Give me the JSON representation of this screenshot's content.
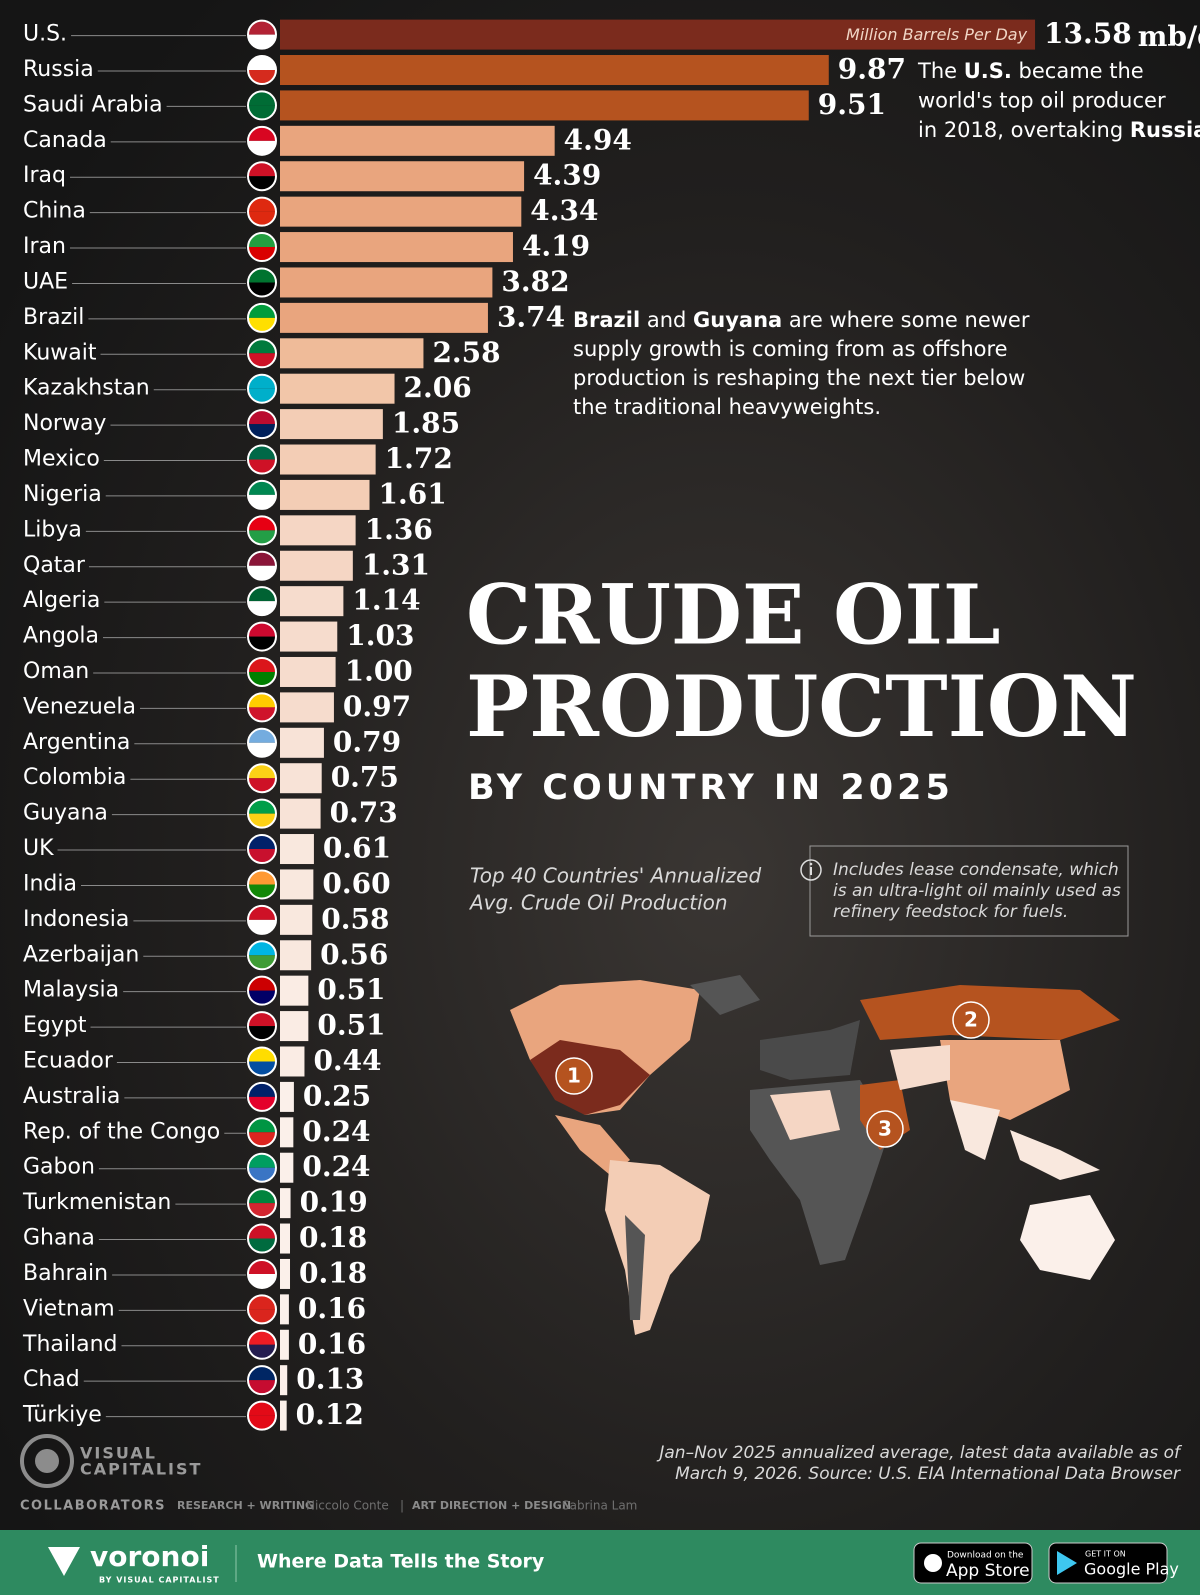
{
  "chart_data": {
    "type": "bar",
    "title": [
      "CRUDE OIL",
      "PRODUCTION"
    ],
    "subtitle": "BY COUNTRY IN 2025",
    "description": [
      "Top 40 Countries' Annualized",
      "Avg. Crude Oil Production"
    ],
    "note": [
      "Includes lease condensate, which",
      "is an ultra-light oil mainly used as",
      "refinery feedstock for fuels."
    ],
    "unit_label": "Million Barrels Per Day",
    "unit": "mb/d",
    "categories": [
      "U.S.",
      "Russia",
      "Saudi Arabia",
      "Canada",
      "Iraq",
      "China",
      "Iran",
      "UAE",
      "Brazil",
      "Kuwait",
      "Kazakhstan",
      "Norway",
      "Mexico",
      "Nigeria",
      "Libya",
      "Qatar",
      "Algeria",
      "Angola",
      "Oman",
      "Venezuela",
      "Argentina",
      "Colombia",
      "Guyana",
      "UK",
      "India",
      "Indonesia",
      "Azerbaijan",
      "Malaysia",
      "Egypt",
      "Ecuador",
      "Australia",
      "Rep. of the Congo",
      "Gabon",
      "Turkmenistan",
      "Ghana",
      "Bahrain",
      "Vietnam",
      "Thailand",
      "Chad",
      "Türkiye"
    ],
    "values": [
      13.58,
      9.87,
      9.51,
      4.94,
      4.39,
      4.34,
      4.19,
      3.82,
      3.74,
      2.58,
      2.06,
      1.85,
      1.72,
      1.61,
      1.36,
      1.31,
      1.14,
      1.03,
      1.0,
      0.97,
      0.79,
      0.75,
      0.73,
      0.61,
      0.6,
      0.58,
      0.56,
      0.51,
      0.51,
      0.44,
      0.25,
      0.24,
      0.24,
      0.19,
      0.18,
      0.18,
      0.16,
      0.16,
      0.13,
      0.12
    ],
    "value_labels": [
      "13.58",
      "9.87",
      "9.51",
      "4.94",
      "4.39",
      "4.34",
      "4.19",
      "3.82",
      "3.74",
      "2.58",
      "2.06",
      "1.85",
      "1.72",
      "1.61",
      "1.36",
      "1.31",
      "1.14",
      "1.03",
      "1.00",
      "0.97",
      "0.79",
      "0.75",
      "0.73",
      "0.61",
      "0.60",
      "0.58",
      "0.56",
      "0.51",
      "0.51",
      "0.44",
      "0.25",
      "0.24",
      "0.24",
      "0.19",
      "0.18",
      "0.18",
      "0.16",
      "0.16",
      "0.13",
      "0.12"
    ],
    "colors": [
      "#7b2b1d",
      "#b5531f",
      "#b5531f",
      "#e9a57e",
      "#e9a57e",
      "#e9a57e",
      "#e9a57e",
      "#e9a57e",
      "#e9a57e",
      "#efbb99",
      "#f2c6a9",
      "#f3cdb5",
      "#f3cdb5",
      "#f3cdb5",
      "#f5d6c4",
      "#f5d6c4",
      "#f6dccd",
      "#f6dccd",
      "#f6dccd",
      "#f6dccd",
      "#f8e3d7",
      "#f8e3d7",
      "#f8e3d7",
      "#f9e8de",
      "#f9e8de",
      "#f9e8de",
      "#f9e8de",
      "#faece4",
      "#faece4",
      "#faece4",
      "#fbf0ea",
      "#fbf0ea",
      "#fbf0ea",
      "#fbf0ea",
      "#fbf0ea",
      "#fbf0ea",
      "#fbf0ea",
      "#fbf0ea",
      "#fbf0ea",
      "#fbf0ea"
    ],
    "annotations": [
      {
        "lines": [
          [
            "The ",
            {
              "text": "U.S.",
              "bold": true
            },
            " became the"
          ],
          [
            "world's top oil producer"
          ],
          [
            "in 2018, overtaking ",
            {
              "text": "Russia",
              "bold": true
            },
            "."
          ]
        ]
      },
      {
        "lines": [
          [
            {
              "text": "Brazil",
              "bold": true
            },
            " and ",
            {
              "text": "Guyana",
              "bold": true
            },
            " are where some newer"
          ],
          [
            "supply growth is coming from as offshore"
          ],
          [
            "production is reshaping the next tier below"
          ],
          [
            "the traditional heavyweights."
          ]
        ]
      }
    ],
    "map_markers": [
      "1",
      "2",
      "3"
    ],
    "source": [
      "Jan–Nov 2025 annualized average, latest data available as of",
      "March 9, 2026. Source: U.S. EIA International Data Browser"
    ]
  },
  "brand": {
    "logo": [
      "VISUAL",
      "CAPITALIST"
    ],
    "collaborators": "COLLABORATORS",
    "research_label": "RESEARCH + WRITING",
    "research_name": "Niccolo Conte",
    "design_label": "ART DIRECTION + DESIGN",
    "design_name": "Sabrina Lam"
  },
  "footer": {
    "name": "voronoi",
    "byline": "BY VISUAL CAPITALIST",
    "tagline": "Where Data Tells the Story",
    "app_store": [
      "Download on the",
      "App Store"
    ],
    "google_play": [
      "GET IT ON",
      "Google Play"
    ]
  }
}
